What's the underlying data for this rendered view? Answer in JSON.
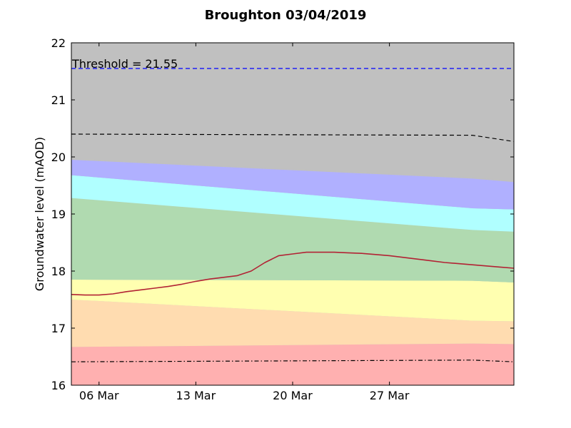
{
  "chart_data": {
    "type": "line",
    "title": "Broughton 03/04/2019",
    "xlabel": "",
    "ylabel": "Groundwater level (mAOD)",
    "xlim": [
      "2019-03-04",
      "2019-04-05"
    ],
    "ylim": [
      16,
      22
    ],
    "y_ticks": [
      16,
      17,
      18,
      19,
      20,
      21,
      22
    ],
    "x_ticks": [
      {
        "date": "2019-03-06",
        "label": "06 Mar"
      },
      {
        "date": "2019-03-13",
        "label": "13 Mar"
      },
      {
        "date": "2019-03-20",
        "label": "20 Mar"
      },
      {
        "date": "2019-03-27",
        "label": "27 Mar"
      }
    ],
    "grid": false,
    "background_color": "#c0c0c0",
    "bands": [
      {
        "color": "#ffb0b0",
        "lower": [
          [
            "2019-03-04",
            16.0
          ],
          [
            "2019-04-05",
            16.0
          ]
        ],
        "upper": [
          [
            "2019-03-04",
            16.67
          ],
          [
            "2019-04-02",
            16.73
          ],
          [
            "2019-04-05",
            16.72
          ]
        ]
      },
      {
        "color": "#ffdcb0",
        "lower": [
          [
            "2019-03-04",
            16.67
          ],
          [
            "2019-04-02",
            16.73
          ],
          [
            "2019-04-05",
            16.72
          ]
        ],
        "upper": [
          [
            "2019-03-04",
            17.5
          ],
          [
            "2019-04-02",
            17.13
          ],
          [
            "2019-04-05",
            17.12
          ]
        ]
      },
      {
        "color": "#ffffb0",
        "lower": [
          [
            "2019-03-04",
            17.5
          ],
          [
            "2019-04-02",
            17.13
          ],
          [
            "2019-04-05",
            17.12
          ]
        ],
        "upper": [
          [
            "2019-03-04",
            17.85
          ],
          [
            "2019-04-02",
            17.83
          ],
          [
            "2019-04-05",
            17.8
          ]
        ]
      },
      {
        "color": "#b0dab0",
        "lower": [
          [
            "2019-03-04",
            17.85
          ],
          [
            "2019-04-02",
            17.83
          ],
          [
            "2019-04-05",
            17.8
          ]
        ],
        "upper": [
          [
            "2019-03-04",
            19.28
          ],
          [
            "2019-04-02",
            18.72
          ],
          [
            "2019-04-05",
            18.69
          ]
        ]
      },
      {
        "color": "#b0ffff",
        "lower": [
          [
            "2019-03-04",
            19.28
          ],
          [
            "2019-04-02",
            18.72
          ],
          [
            "2019-04-05",
            18.69
          ]
        ],
        "upper": [
          [
            "2019-03-04",
            19.68
          ],
          [
            "2019-04-02",
            19.1
          ],
          [
            "2019-04-05",
            19.08
          ]
        ]
      },
      {
        "color": "#b0b0ff",
        "lower": [
          [
            "2019-03-04",
            19.68
          ],
          [
            "2019-04-02",
            19.1
          ],
          [
            "2019-04-05",
            19.08
          ]
        ],
        "upper": [
          [
            "2019-03-04",
            19.95
          ],
          [
            "2019-04-02",
            19.62
          ],
          [
            "2019-04-05",
            19.56
          ]
        ]
      }
    ],
    "series": [
      {
        "color": "#b22234",
        "points": [
          [
            "2019-03-04",
            17.59
          ],
          [
            "2019-03-05",
            17.58
          ],
          [
            "2019-03-06",
            17.58
          ],
          [
            "2019-03-07",
            17.6
          ],
          [
            "2019-03-08",
            17.64
          ],
          [
            "2019-03-09",
            17.67
          ],
          [
            "2019-03-10",
            17.7
          ],
          [
            "2019-03-11",
            17.73
          ],
          [
            "2019-03-12",
            17.77
          ],
          [
            "2019-03-13",
            17.82
          ],
          [
            "2019-03-14",
            17.86
          ],
          [
            "2019-03-15",
            17.89
          ],
          [
            "2019-03-16",
            17.92
          ],
          [
            "2019-03-17",
            18.0
          ],
          [
            "2019-03-18",
            18.15
          ],
          [
            "2019-03-19",
            18.27
          ],
          [
            "2019-03-20",
            18.3
          ],
          [
            "2019-03-21",
            18.33
          ],
          [
            "2019-03-22",
            18.33
          ],
          [
            "2019-03-23",
            18.33
          ],
          [
            "2019-03-24",
            18.32
          ],
          [
            "2019-03-25",
            18.31
          ],
          [
            "2019-03-26",
            18.29
          ],
          [
            "2019-03-27",
            18.27
          ],
          [
            "2019-03-28",
            18.24
          ],
          [
            "2019-03-29",
            18.21
          ],
          [
            "2019-03-30",
            18.18
          ],
          [
            "2019-03-31",
            18.15
          ],
          [
            "2019-04-01",
            18.13
          ],
          [
            "2019-04-02",
            18.11
          ],
          [
            "2019-04-03",
            18.09
          ],
          [
            "2019-04-04",
            18.07
          ],
          [
            "2019-04-05",
            18.05
          ]
        ]
      }
    ],
    "reference_lines": [
      {
        "label": "Threshold = 21.55",
        "color": "#0000ff",
        "style": "dashed",
        "points": [
          [
            "2019-03-04",
            21.55
          ],
          [
            "2019-04-05",
            21.55
          ]
        ]
      },
      {
        "label": "",
        "color": "#000000",
        "style": "dashed",
        "points": [
          [
            "2019-03-04",
            20.4
          ],
          [
            "2019-04-02",
            20.38
          ],
          [
            "2019-04-05",
            20.27
          ]
        ]
      },
      {
        "label": "",
        "color": "#000000",
        "style": "dashdot",
        "points": [
          [
            "2019-03-04",
            16.41
          ],
          [
            "2019-04-02",
            16.44
          ],
          [
            "2019-04-05",
            16.41
          ]
        ]
      }
    ],
    "annotations": [
      {
        "text": "Threshold = 21.55",
        "x": "2019-03-04",
        "y": 21.55
      }
    ]
  }
}
